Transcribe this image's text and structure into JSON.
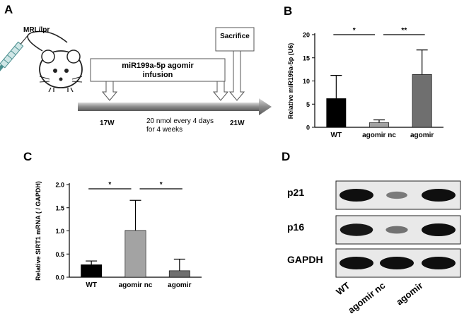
{
  "panels": {
    "a": "A",
    "b": "B",
    "c": "C",
    "d": "D"
  },
  "schematic": {
    "mouse_label": "MRL/lpr",
    "infusion_line1": "miR199a-5p agomir",
    "infusion_line2": "infusion",
    "sacrifice": "Sacrifice",
    "start_week": "17W",
    "end_week": "21W",
    "dose_line1": "20 nmol every 4 days",
    "dose_line2": "for 4 weeks"
  },
  "chart_data": [
    {
      "type": "bar",
      "panel": "B",
      "categories": [
        "WT",
        "agomir nc",
        "agomir"
      ],
      "values": [
        6.2,
        1.0,
        11.4
      ],
      "errors": [
        5.0,
        0.6,
        5.3
      ],
      "bar_colors": [
        "#000000",
        "#a3a3a3",
        "#6f6f6f"
      ],
      "ylabel": "Relative miR199a-5p (U6)",
      "ylim": [
        0,
        20
      ],
      "yticks": [
        "0",
        "5",
        "10",
        "15",
        "20"
      ],
      "significance": [
        {
          "from": 0,
          "to": 1,
          "label": "*"
        },
        {
          "from": 1,
          "to": 2,
          "label": "**"
        }
      ]
    },
    {
      "type": "bar",
      "panel": "C",
      "categories": [
        "WT",
        "agomir nc",
        "agomir"
      ],
      "values": [
        0.27,
        1.01,
        0.14
      ],
      "errors": [
        0.08,
        0.65,
        0.25
      ],
      "bar_colors": [
        "#000000",
        "#a3a3a3",
        "#6f6f6f"
      ],
      "ylabel": "Relative SIRT1 mRNA ( / GAPDH)",
      "ylim": [
        0,
        2.0
      ],
      "yticks": [
        "0.0",
        "0.5",
        "1.0",
        "1.5",
        "2.0"
      ],
      "significance": [
        {
          "from": 0,
          "to": 1,
          "label": "*"
        },
        {
          "from": 1,
          "to": 2,
          "label": "*"
        }
      ]
    }
  ],
  "blot": {
    "rows": [
      {
        "label": "p21",
        "intensity": [
          1.0,
          0.35,
          1.0
        ]
      },
      {
        "label": "p16",
        "intensity": [
          0.95,
          0.4,
          1.0
        ]
      },
      {
        "label": "GAPDH",
        "intensity": [
          1.0,
          1.0,
          1.0
        ]
      }
    ],
    "lanes": [
      "WT",
      "agomir nc",
      "agomir"
    ]
  }
}
